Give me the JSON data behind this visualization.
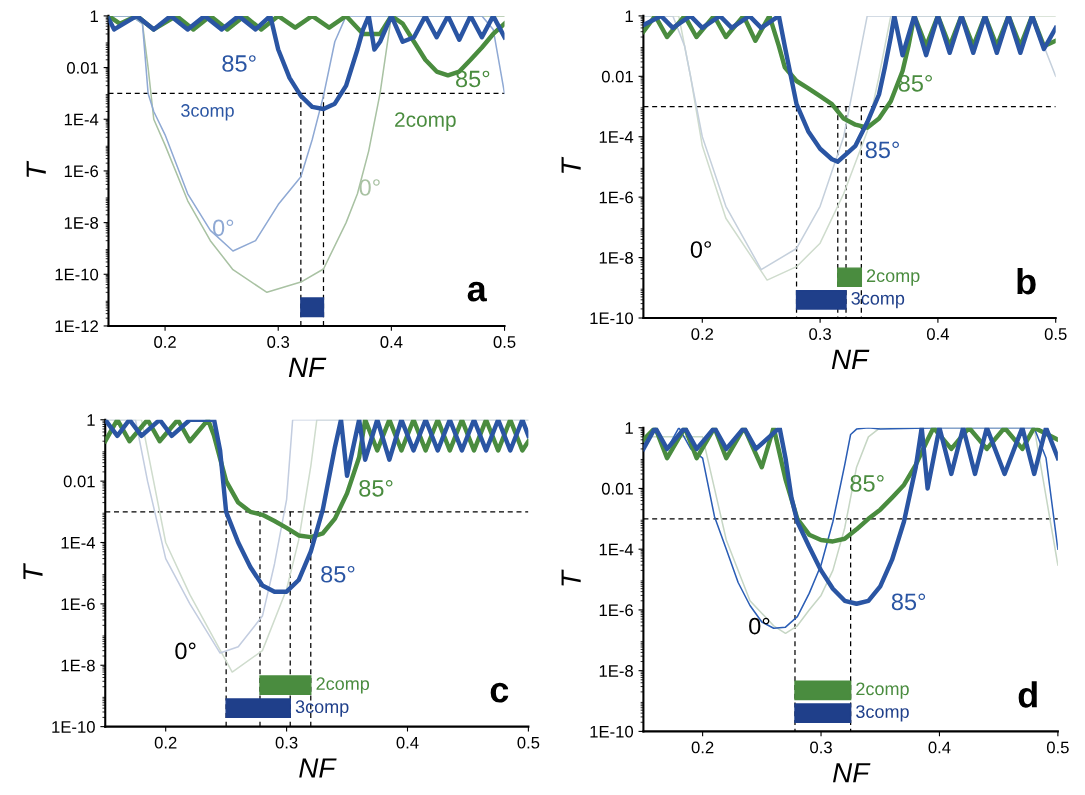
{
  "chart_data": [
    {
      "type": "line",
      "title": "a",
      "xlabel": "NF",
      "ylabel": "T",
      "log": "y",
      "xlim": [
        0.15,
        0.5
      ],
      "xticks": [
        0.2,
        0.3,
        0.4,
        0.5
      ],
      "ylim": [
        1e-12,
        1
      ],
      "yticks": [
        {
          "value": 1,
          "label": "1"
        },
        {
          "value": 0.01,
          "label": "0.01"
        },
        {
          "value": 0.0001,
          "label": "1E-4"
        },
        {
          "value": 1e-06,
          "label": "1E-6"
        },
        {
          "value": 1e-08,
          "label": "1E-8"
        },
        {
          "value": 1e-10,
          "label": "1E-10"
        },
        {
          "value": 1e-12,
          "label": "1E-12"
        }
      ],
      "grid": false,
      "legend": false,
      "series": [
        {
          "name": "85°",
          "color": "#2a55a3",
          "x": [
            0.15,
            0.155,
            0.175,
            0.19,
            0.205,
            0.22,
            0.235,
            0.25,
            0.265,
            0.28,
            0.293,
            0.3,
            0.31,
            0.32,
            0.33,
            0.34,
            0.35,
            0.36,
            0.37,
            0.375,
            0.38,
            0.385,
            0.39,
            0.4,
            0.41,
            0.42,
            0.43,
            0.44,
            0.45,
            0.46,
            0.47,
            0.48,
            0.49,
            0.5
          ],
          "values": [
            0.8,
            0.3,
            1,
            0.3,
            1,
            0.3,
            1,
            0.3,
            1,
            0.3,
            1,
            0.05,
            0.004,
            0.0008,
            0.0003,
            0.00025,
            0.0004,
            0.002,
            0.05,
            0.3,
            1,
            0.05,
            0.1,
            1,
            0.1,
            0.15,
            1,
            0.15,
            1,
            0.12,
            1,
            0.15,
            1,
            0.15
          ]
        },
        {
          "name": "85°",
          "color": "#4a8c3f",
          "x": [
            0.15,
            0.16,
            0.175,
            0.19,
            0.21,
            0.225,
            0.24,
            0.255,
            0.27,
            0.285,
            0.3,
            0.315,
            0.33,
            0.345,
            0.36,
            0.375,
            0.39,
            0.4,
            0.41,
            0.42,
            0.43,
            0.44,
            0.45,
            0.46,
            0.47,
            0.48,
            0.49,
            0.5
          ],
          "values": [
            1,
            0.5,
            1,
            0.3,
            1,
            0.3,
            1,
            0.3,
            1,
            0.3,
            1,
            0.35,
            1,
            0.35,
            1,
            0.2,
            0.2,
            1,
            0.5,
            0.1,
            0.02,
            0.007,
            0.005,
            0.007,
            0.02,
            0.06,
            0.2,
            0.5
          ]
        },
        {
          "name": "0°",
          "color": "#8fa9d4",
          "x": [
            0.15,
            0.17,
            0.18,
            0.185,
            0.19,
            0.2,
            0.22,
            0.24,
            0.26,
            0.28,
            0.3,
            0.32,
            0.33,
            0.34,
            0.35,
            0.36,
            0.4,
            0.45,
            0.48,
            0.49,
            0.5
          ],
          "values": [
            1,
            1,
            0.5,
            0.001,
            0.0002,
            2.5e-05,
            1.3e-07,
            5e-09,
            8e-10,
            2e-09,
            5e-08,
            6e-07,
            1.6e-05,
            0.0008,
            0.1,
            1,
            1,
            1,
            1,
            0.3,
            0.001
          ]
        },
        {
          "name": "0°",
          "color": "#a9c2a3",
          "x": [
            0.15,
            0.17,
            0.18,
            0.185,
            0.19,
            0.2,
            0.22,
            0.24,
            0.26,
            0.29,
            0.32,
            0.34,
            0.36,
            0.37,
            0.38,
            0.39,
            0.4,
            0.45,
            0.5
          ],
          "values": [
            1,
            1,
            0.5,
            0.01,
            0.0001,
            1e-05,
            7e-08,
            2e-09,
            1.5e-10,
            2e-11,
            5e-11,
            1.6e-10,
            1e-08,
            1.3e-07,
            6e-06,
            0.001,
            1,
            1,
            1
          ]
        }
      ],
      "ref_lines": [
        {
          "axis": "y",
          "value": 0.001,
          "line_style": "dashed",
          "color": "#000000"
        },
        {
          "axis": "x",
          "value": 0.32,
          "line_style": "dashed",
          "color": "#000000"
        },
        {
          "axis": "x",
          "value": 0.34,
          "line_style": "dashed",
          "color": "#000000"
        }
      ],
      "bands": [
        {
          "axis": "x",
          "from": 0.32,
          "to": 0.34,
          "color": "#1f3f8a"
        }
      ],
      "annotations": [
        "3comp",
        "2comp"
      ]
    },
    {
      "type": "line",
      "title": "b",
      "xlabel": "NF",
      "ylabel": "T",
      "log": "y",
      "xlim": [
        0.15,
        0.5
      ],
      "xticks": [
        0.2,
        0.3,
        0.4,
        0.5
      ],
      "ylim": [
        1e-10,
        1
      ],
      "yticks": [
        {
          "value": 1,
          "label": "1"
        },
        {
          "value": 0.01,
          "label": "0.01"
        },
        {
          "value": 0.0001,
          "label": "1E-4"
        },
        {
          "value": 1e-06,
          "label": "1E-6"
        },
        {
          "value": 1e-08,
          "label": "1E-8"
        },
        {
          "value": 1e-10,
          "label": "1E-10"
        }
      ],
      "grid": false,
      "legend": false,
      "series": [
        {
          "name": "85°",
          "color": "#2a55a3",
          "x": [
            0.15,
            0.165,
            0.175,
            0.19,
            0.2,
            0.215,
            0.225,
            0.24,
            0.25,
            0.265,
            0.27,
            0.28,
            0.29,
            0.3,
            0.31,
            0.315,
            0.33,
            0.34,
            0.35,
            0.355,
            0.36,
            0.363,
            0.37,
            0.38,
            0.39,
            0.4,
            0.41,
            0.42,
            0.43,
            0.44,
            0.45,
            0.46,
            0.47,
            0.48,
            0.49,
            0.5
          ],
          "values": [
            0.5,
            1,
            0.4,
            1,
            0.4,
            1,
            0.4,
            1,
            0.4,
            1,
            0.1,
            0.0012,
            0.00015,
            4e-05,
            1.8e-05,
            1.5e-05,
            5e-05,
            0.0003,
            0.0025,
            0.02,
            0.2,
            1,
            0.05,
            1,
            0.05,
            1,
            0.06,
            1,
            0.06,
            1,
            0.06,
            1,
            0.06,
            1,
            0.08,
            0.4
          ]
        },
        {
          "name": "85°",
          "color": "#4a8c3f",
          "x": [
            0.15,
            0.16,
            0.17,
            0.185,
            0.195,
            0.21,
            0.22,
            0.235,
            0.245,
            0.257,
            0.265,
            0.27,
            0.28,
            0.29,
            0.3,
            0.31,
            0.32,
            0.33,
            0.34,
            0.35,
            0.36,
            0.37,
            0.375,
            0.38,
            0.39,
            0.4,
            0.41,
            0.42,
            0.43,
            0.44,
            0.45,
            0.46,
            0.47,
            0.48,
            0.49,
            0.5
          ],
          "values": [
            0.3,
            1,
            0.2,
            1,
            0.2,
            1,
            0.2,
            1,
            0.15,
            1,
            0.1,
            0.02,
            0.007,
            0.004,
            0.0022,
            0.0012,
            0.0004,
            0.00025,
            0.0002,
            0.0004,
            0.0015,
            0.015,
            0.1,
            1,
            0.1,
            1,
            0.1,
            1,
            0.1,
            1,
            0.1,
            1,
            0.1,
            1,
            0.1,
            0.15
          ]
        },
        {
          "color": "#c5d0dc",
          "x": [
            0.15,
            0.175,
            0.185,
            0.2,
            0.22,
            0.25,
            0.28,
            0.3,
            0.32,
            0.33,
            0.34,
            0.4,
            0.48,
            0.5
          ],
          "values": [
            1,
            1,
            0.1,
            0.0001,
            5e-07,
            4e-09,
            2e-08,
            5e-07,
            0.0001,
            0.01,
            1,
            1,
            1,
            0.01
          ]
        },
        {
          "color": "#cfdccd",
          "x": [
            0.15,
            0.18,
            0.19,
            0.2,
            0.22,
            0.255,
            0.28,
            0.3,
            0.32,
            0.34,
            0.35,
            0.36,
            0.4,
            0.5
          ],
          "values": [
            1,
            1,
            0.01,
            5e-05,
            2e-07,
            1.8e-09,
            5e-09,
            3e-08,
            1.3e-06,
            0.00015,
            0.01,
            1,
            1,
            1
          ]
        }
      ],
      "ref_lines": [
        {
          "axis": "y",
          "value": 0.001,
          "line_style": "dashed",
          "color": "#000000"
        },
        {
          "axis": "x",
          "value": 0.28,
          "line_style": "dashed",
          "color": "#000000"
        },
        {
          "axis": "x",
          "value": 0.315,
          "line_style": "dashed",
          "color": "#000000"
        },
        {
          "axis": "x",
          "value": 0.322,
          "line_style": "dashed",
          "color": "#000000"
        },
        {
          "axis": "x",
          "value": 0.335,
          "line_style": "dashed",
          "color": "#000000"
        }
      ],
      "bands": [
        {
          "axis": "x",
          "from": 0.315,
          "to": 0.335,
          "label": "2comp",
          "color": "#4a8c3f"
        },
        {
          "axis": "x",
          "from": 0.28,
          "to": 0.322,
          "label": "3comp",
          "color": "#1f3f8a"
        }
      ],
      "annotations": [
        "0°"
      ]
    },
    {
      "type": "line",
      "title": "c",
      "xlabel": "NF",
      "ylabel": "T",
      "log": "y",
      "xlim": [
        0.15,
        0.5
      ],
      "xticks": [
        0.2,
        0.3,
        0.4,
        0.5
      ],
      "ylim": [
        1e-10,
        1
      ],
      "yticks": [
        {
          "value": 1,
          "label": "1"
        },
        {
          "value": 0.01,
          "label": "0.01"
        },
        {
          "value": 0.0001,
          "label": "1E-4"
        },
        {
          "value": 1e-06,
          "label": "1E-6"
        },
        {
          "value": 1e-08,
          "label": "1E-8"
        },
        {
          "value": 1e-10,
          "label": "1E-10"
        }
      ],
      "grid": false,
      "legend": false,
      "series": [
        {
          "name": "85°",
          "color": "#2a55a3",
          "x": [
            0.15,
            0.16,
            0.17,
            0.18,
            0.195,
            0.205,
            0.22,
            0.24,
            0.245,
            0.25,
            0.26,
            0.27,
            0.28,
            0.29,
            0.3,
            0.31,
            0.32,
            0.33,
            0.34,
            0.345,
            0.35,
            0.36,
            0.365,
            0.375,
            0.385,
            0.395,
            0.405,
            0.415,
            0.425,
            0.435,
            0.445,
            0.455,
            0.465,
            0.475,
            0.485,
            0.495,
            0.5
          ],
          "values": [
            1,
            0.3,
            1,
            0.3,
            1,
            0.3,
            1,
            1,
            0.1,
            0.001,
            0.0001,
            1.6e-05,
            4e-06,
            2.5e-06,
            2.5e-06,
            6e-06,
            5e-05,
            0.0012,
            0.13,
            1,
            0.015,
            1,
            0.05,
            1,
            0.05,
            1,
            0.1,
            1,
            0.1,
            1,
            0.1,
            1,
            0.1,
            1,
            0.1,
            1,
            0.3
          ]
        },
        {
          "name": "85°",
          "color": "#4a8c3f",
          "x": [
            0.15,
            0.16,
            0.17,
            0.185,
            0.195,
            0.21,
            0.22,
            0.235,
            0.24,
            0.25,
            0.26,
            0.27,
            0.28,
            0.29,
            0.3,
            0.31,
            0.32,
            0.33,
            0.34,
            0.35,
            0.36,
            0.365,
            0.375,
            0.385,
            0.395,
            0.405,
            0.415,
            0.425,
            0.435,
            0.445,
            0.455,
            0.465,
            0.475,
            0.485,
            0.495,
            0.5
          ],
          "values": [
            0.2,
            1,
            0.2,
            1,
            0.2,
            1,
            0.2,
            1,
            0.3,
            0.01,
            0.002,
            0.001,
            0.0008,
            0.0005,
            0.0003,
            0.00017,
            0.00015,
            0.0002,
            0.0006,
            0.004,
            0.06,
            1,
            0.1,
            1,
            0.1,
            1,
            0.1,
            1,
            0.1,
            1,
            0.1,
            1,
            0.1,
            1,
            0.1,
            0.2
          ]
        },
        {
          "color": "#c3cde0",
          "x": [
            0.15,
            0.175,
            0.185,
            0.2,
            0.22,
            0.245,
            0.26,
            0.28,
            0.29,
            0.3,
            0.305,
            0.35,
            0.4,
            0.5
          ],
          "values": [
            1,
            1,
            0.01,
            3e-05,
            1e-06,
            2.5e-08,
            4e-08,
            4e-07,
            2e-05,
            0.0025,
            1,
            1,
            1,
            1
          ]
        },
        {
          "color": "#cfdccd",
          "x": [
            0.15,
            0.18,
            0.19,
            0.2,
            0.22,
            0.255,
            0.28,
            0.3,
            0.31,
            0.32,
            0.325,
            0.4,
            0.5
          ],
          "values": [
            1,
            1,
            0.01,
            0.0001,
            2e-06,
            6e-09,
            3e-08,
            3e-06,
            0.00012,
            0.03,
            1,
            1,
            1
          ]
        }
      ],
      "ref_lines": [
        {
          "axis": "y",
          "value": 0.001,
          "line_style": "dashed",
          "color": "#000000"
        },
        {
          "axis": "x",
          "value": 0.25,
          "line_style": "dashed",
          "color": "#000000"
        },
        {
          "axis": "x",
          "value": 0.278,
          "line_style": "dashed",
          "color": "#000000"
        },
        {
          "axis": "x",
          "value": 0.303,
          "line_style": "dashed",
          "color": "#000000"
        },
        {
          "axis": "x",
          "value": 0.32,
          "line_style": "dashed",
          "color": "#000000"
        }
      ],
      "bands": [
        {
          "axis": "x",
          "from": 0.278,
          "to": 0.32,
          "label": "2comp",
          "color": "#4a8c3f"
        },
        {
          "axis": "x",
          "from": 0.25,
          "to": 0.303,
          "label": "3comp",
          "color": "#1f3f8a"
        }
      ],
      "annotations": [
        "0°"
      ]
    },
    {
      "type": "line",
      "title": "d",
      "xlabel": "NF",
      "ylabel": "T",
      "log": "y",
      "xlim": [
        0.15,
        0.5
      ],
      "xticks": [
        0.2,
        0.3,
        0.4,
        0.5
      ],
      "ylim": [
        1e-10,
        1
      ],
      "yticks": [
        {
          "value": 1,
          "label": "1"
        },
        {
          "value": 0.01,
          "label": "0.01"
        },
        {
          "value": 0.0001,
          "label": "1E-4"
        },
        {
          "value": 1e-06,
          "label": "1E-6"
        },
        {
          "value": 1e-08,
          "label": "1E-8"
        },
        {
          "value": 1e-10,
          "label": "1E-10"
        }
      ],
      "grid": false,
      "legend": false,
      "series": [
        {
          "name": "85°",
          "color": "#2a55a3",
          "x": [
            0.15,
            0.16,
            0.17,
            0.185,
            0.195,
            0.21,
            0.22,
            0.235,
            0.245,
            0.265,
            0.27,
            0.275,
            0.28,
            0.29,
            0.3,
            0.31,
            0.32,
            0.33,
            0.34,
            0.35,
            0.36,
            0.37,
            0.38,
            0.385,
            0.39,
            0.4,
            0.41,
            0.42,
            0.43,
            0.44,
            0.455,
            0.47,
            0.48,
            0.49,
            0.5
          ],
          "values": [
            0.2,
            1,
            0.2,
            1,
            0.2,
            1,
            0.2,
            1,
            0.2,
            1,
            0.1,
            0.005,
            0.0008,
            0.00012,
            2e-05,
            5e-06,
            2e-06,
            1.6e-06,
            2e-06,
            6e-06,
            4.5e-05,
            0.0008,
            0.05,
            1,
            0.01,
            1,
            0.03,
            1,
            0.03,
            1,
            0.03,
            1,
            0.03,
            1,
            0.1
          ]
        },
        {
          "name": "85°",
          "color": "#4a8c3f",
          "x": [
            0.15,
            0.16,
            0.17,
            0.185,
            0.195,
            0.21,
            0.22,
            0.235,
            0.25,
            0.26,
            0.27,
            0.28,
            0.29,
            0.3,
            0.31,
            0.32,
            0.33,
            0.34,
            0.35,
            0.36,
            0.37,
            0.38,
            0.39,
            0.395,
            0.41,
            0.425,
            0.44,
            0.455,
            0.47,
            0.48,
            0.5
          ],
          "values": [
            0.4,
            1,
            0.1,
            1,
            0.1,
            1,
            0.1,
            1,
            0.05,
            1,
            0.02,
            0.001,
            0.0003,
            0.0002,
            0.00018,
            0.00022,
            0.00045,
            0.001,
            0.002,
            0.005,
            0.013,
            0.06,
            0.4,
            1,
            0.2,
            1,
            0.2,
            1,
            0.2,
            1,
            0.4
          ]
        },
        {
          "color": "#2a5db5",
          "x": [
            0.15,
            0.16,
            0.17,
            0.18,
            0.19,
            0.2,
            0.21,
            0.22,
            0.23,
            0.24,
            0.25,
            0.26,
            0.27,
            0.28,
            0.29,
            0.3,
            0.31,
            0.32,
            0.325,
            0.33,
            0.34,
            0.35,
            0.4,
            0.45,
            0.48,
            0.49,
            0.5
          ],
          "values": [
            0.2,
            1,
            0.2,
            1,
            0.2,
            0.1,
            0.0012,
            0.0001,
            8e-06,
            1.4e-06,
            4e-07,
            2.5e-07,
            2.7e-07,
            6e-07,
            3.5e-06,
            3e-05,
            0.0008,
            0.06,
            0.6,
            0.9,
            1,
            0.9,
            1,
            1,
            1,
            0.1,
            0.0001
          ]
        },
        {
          "color": "#c6d6c4",
          "x": [
            0.15,
            0.2,
            0.21,
            0.22,
            0.24,
            0.26,
            0.27,
            0.28,
            0.29,
            0.3,
            0.31,
            0.32,
            0.33,
            0.34,
            0.35,
            0.4,
            0.48,
            0.5
          ],
          "values": [
            0.5,
            0.5,
            0.01,
            0.0002,
            2e-06,
            3e-07,
            1.7e-07,
            3e-07,
            1e-06,
            3e-06,
            2e-05,
            0.0005,
            0.05,
            0.5,
            1,
            1,
            1,
            3e-05
          ]
        }
      ],
      "ref_lines": [
        {
          "axis": "y",
          "value": 0.001,
          "line_style": "dashed",
          "color": "#000000"
        },
        {
          "axis": "x",
          "value": 0.278,
          "line_style": "dashed",
          "color": "#000000"
        },
        {
          "axis": "x",
          "value": 0.325,
          "line_style": "dashed",
          "color": "#000000"
        }
      ],
      "bands": [
        {
          "axis": "x",
          "from": 0.278,
          "to": 0.325,
          "label": "2comp",
          "color": "#4a8c3f"
        },
        {
          "axis": "x",
          "from": 0.278,
          "to": 0.325,
          "label": "3comp",
          "color": "#1f3f8a"
        }
      ],
      "annotations": [
        "0°"
      ]
    }
  ]
}
